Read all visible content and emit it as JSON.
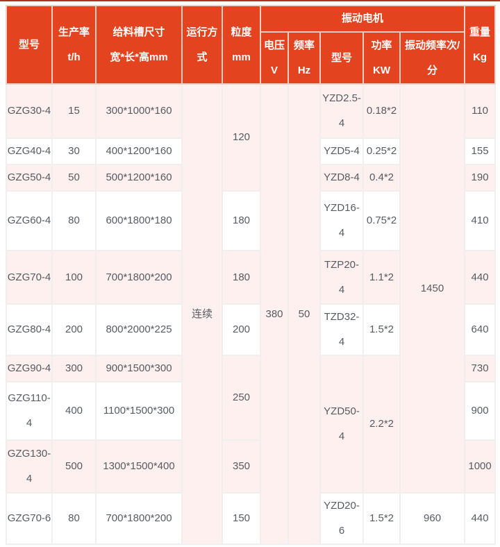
{
  "page": {
    "accent_color": "#e4431f",
    "top_line_color": "#b23122",
    "stripe_color": "#fdf0ee"
  },
  "table": {
    "header": {
      "model": "型号",
      "rate_l1": "生产率",
      "rate_l2": "t/h",
      "trough_l1": "给料槽尺寸",
      "trough_l2": "宽*长*高mm",
      "mode_l1": "运行方",
      "mode_l2": "式",
      "size_l1": "粒度",
      "size_l2": "mm",
      "motor_group": "振动电机",
      "voltage_l1": "电压",
      "voltage_l2": "V",
      "freq_l1": "频率",
      "freq_l2": "Hz",
      "motor_model": "型号",
      "power_l1": "功率",
      "power_l2": "KW",
      "vib_freq_l1": "振动频率次/",
      "vib_freq_l2": "分",
      "weight_l1": "重量",
      "weight_l2": "Kg"
    },
    "shared": {
      "mode": "连续",
      "voltage": "380",
      "frequency": "50",
      "vib_frequency": "1450"
    },
    "rows": [
      {
        "model": "GZG30-4",
        "rate": "15",
        "trough": "300*1000*160",
        "size": "120",
        "motor_model": "YZD2.5-4",
        "power": "0.18*2",
        "weight": "110"
      },
      {
        "model": "GZG40-4",
        "rate": "30",
        "trough": "400*1200*160",
        "motor_model": "YZD5-4",
        "power": "0.25*2",
        "weight": "155"
      },
      {
        "model": "GZG50-4",
        "rate": "50",
        "trough": "500*1200*160",
        "motor_model": "YZD8-4",
        "power": "0.4*2",
        "weight": "190"
      },
      {
        "model": "GZG60-4",
        "rate": "80",
        "trough": "600*1800*180",
        "size": "180",
        "motor_model": "YZD16-4",
        "power": "0.75*2",
        "weight": "410"
      },
      {
        "model": "GZG70-4",
        "rate": "100",
        "trough": "700*1800*200",
        "size": "180",
        "motor_model": "TZP20-4",
        "power": "1.1*2",
        "weight": "440"
      },
      {
        "model": "GZG80-4",
        "rate": "200",
        "trough": "800*2000*225",
        "size": "200",
        "motor_model": "TZD32-4",
        "power": "1.5*2",
        "weight": "640"
      },
      {
        "model": "GZG90-4",
        "rate": "300",
        "trough": "900*1500*300",
        "size": "250",
        "motor_model": "YZD50-4",
        "power": "2.2*2",
        "weight": "730"
      },
      {
        "model": "GZG110-4",
        "rate": "400",
        "trough": "1100*1500*300",
        "weight": "900"
      },
      {
        "model": "GZG130-4",
        "rate": "500",
        "trough": "1300*1500*400",
        "size": "350",
        "weight": "1000"
      },
      {
        "model": "GZG70-6",
        "rate": "80",
        "trough": "700*1800*200",
        "size": "150",
        "motor_model": "YZD20-6",
        "power": "1.5*2",
        "vib_frequency": "960",
        "weight": "440"
      }
    ]
  }
}
